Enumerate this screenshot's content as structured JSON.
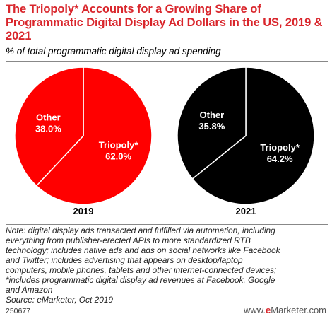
{
  "title": "The Triopoly* Accounts for a Growing Share of Programmatic Digital Display Ad Dollars in the US, 2019 & 2021",
  "subtitle": "% of total programmatic digital display ad spending",
  "colors": {
    "accent": "#d9262c",
    "pie_2019": "#ff0000",
    "pie_2021": "#000000"
  },
  "chart_data": [
    {
      "type": "pie",
      "year_label": "2019",
      "color": "#ff0000",
      "slices": [
        {
          "label": "Triopoly*",
          "value": 62.0,
          "value_label": "62.0%"
        },
        {
          "label": "Other",
          "value": 38.0,
          "value_label": "38.0%"
        }
      ]
    },
    {
      "type": "pie",
      "year_label": "2021",
      "color": "#000000",
      "slices": [
        {
          "label": "Triopoly*",
          "value": 64.2,
          "value_label": "64.2%"
        },
        {
          "label": "Other",
          "value": 35.8,
          "value_label": "35.8%"
        }
      ]
    }
  ],
  "note_lines": [
    "Note: digital display ads transacted and fulfilled via automation, including",
    "everything from publisher-erected APIs to more standardized RTB",
    "technology; includes native ads and ads on social networks like Facebook",
    "and Twitter; includes advertising that appears on desktop/laptop",
    "computers, mobile phones, tablets and other internet-connected devices;",
    "*includes programmatic digital display ad revenues at Facebook, Google",
    "and Amazon"
  ],
  "source": "Source: eMarketer, Oct 2019",
  "footer_id": "250677",
  "logo": {
    "prefix": "www.",
    "e": "e",
    "rest": "Marketer",
    "suffix": ".com"
  }
}
